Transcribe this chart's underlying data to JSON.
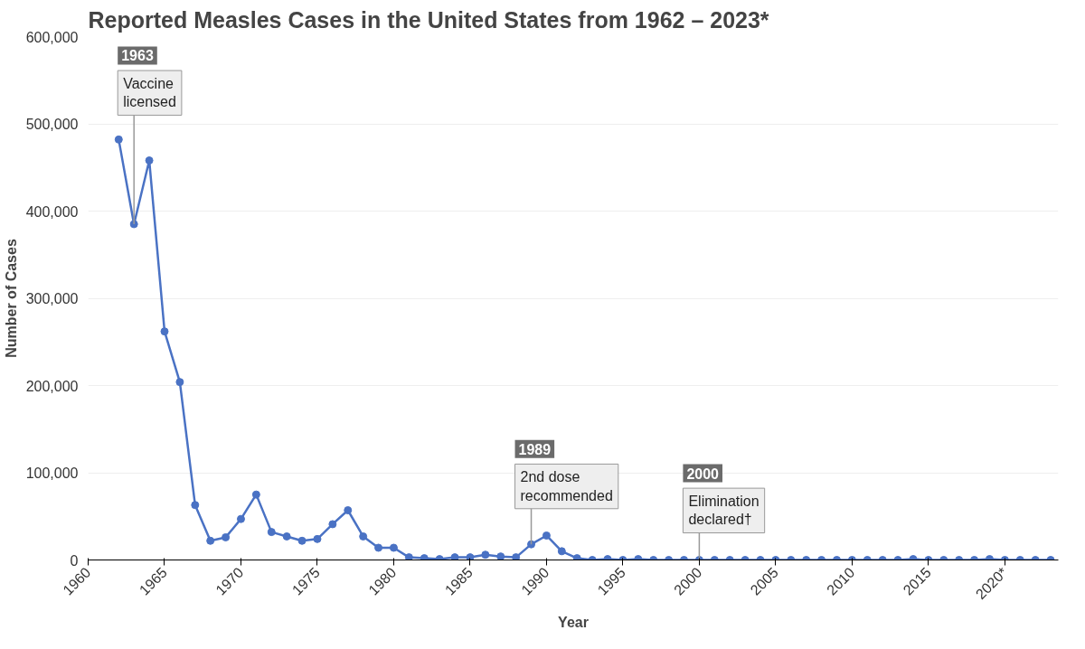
{
  "chart_data": {
    "type": "line",
    "title": "Reported Measles Cases in the United States from 1962 – 2023*",
    "xlabel": "Year",
    "ylabel": "Number of Cases",
    "x": [
      1962,
      1963,
      1964,
      1965,
      1966,
      1967,
      1968,
      1969,
      1970,
      1971,
      1972,
      1973,
      1974,
      1975,
      1976,
      1977,
      1978,
      1979,
      1980,
      1981,
      1982,
      1983,
      1984,
      1985,
      1986,
      1987,
      1988,
      1989,
      1990,
      1991,
      1992,
      1993,
      1994,
      1995,
      1996,
      1997,
      1998,
      1999,
      2000,
      2001,
      2002,
      2003,
      2004,
      2005,
      2006,
      2007,
      2008,
      2009,
      2010,
      2011,
      2012,
      2013,
      2014,
      2015,
      2016,
      2017,
      2018,
      2019,
      2020,
      2021,
      2022,
      2023
    ],
    "series": [
      {
        "color": "#4a72c4",
        "values": [
          482000,
          385000,
          458000,
          262000,
          204000,
          63000,
          22000,
          26000,
          47000,
          75000,
          32000,
          27000,
          22000,
          24000,
          41000,
          57000,
          27000,
          14000,
          14000,
          3000,
          2000,
          1000,
          3000,
          3000,
          6000,
          4000,
          3000,
          18000,
          28000,
          10000,
          2000,
          0,
          1000,
          0,
          1000,
          0,
          0,
          0,
          0,
          0,
          0,
          0,
          0,
          0,
          0,
          0,
          0,
          0,
          0,
          0,
          0,
          0,
          1000,
          0,
          0,
          0,
          0,
          1000,
          0,
          0,
          0,
          0
        ]
      }
    ],
    "xlim": [
      1960,
      2023.5
    ],
    "ylim": [
      0,
      600000
    ],
    "xticks": [
      1960,
      1965,
      1970,
      1975,
      1980,
      1985,
      1990,
      1995,
      2000,
      2005,
      2010,
      2015,
      {
        "value": 2020,
        "label": "2020*"
      }
    ],
    "yticks": [
      {
        "value": 0,
        "label": "0"
      },
      {
        "value": 100000,
        "label": "100,000"
      },
      {
        "value": 200000,
        "label": "200,000"
      },
      {
        "value": 300000,
        "label": "300,000"
      },
      {
        "value": 400000,
        "label": "400,000"
      },
      {
        "value": 500000,
        "label": "500,000"
      },
      {
        "value": 600000,
        "label": "600,000"
      }
    ],
    "grid": "y",
    "marker": "circle",
    "line_style": "solid",
    "annotations": [
      {
        "text": "1963\nVaccine\nlicensed",
        "x": 1963,
        "y": 385000
      },
      {
        "text": "1989\n2nd dose\nrecommended",
        "x": 1989,
        "y": 18000
      },
      {
        "text": "2000\nElimination\ndeclared†",
        "x": 2000,
        "y": 0
      }
    ]
  }
}
